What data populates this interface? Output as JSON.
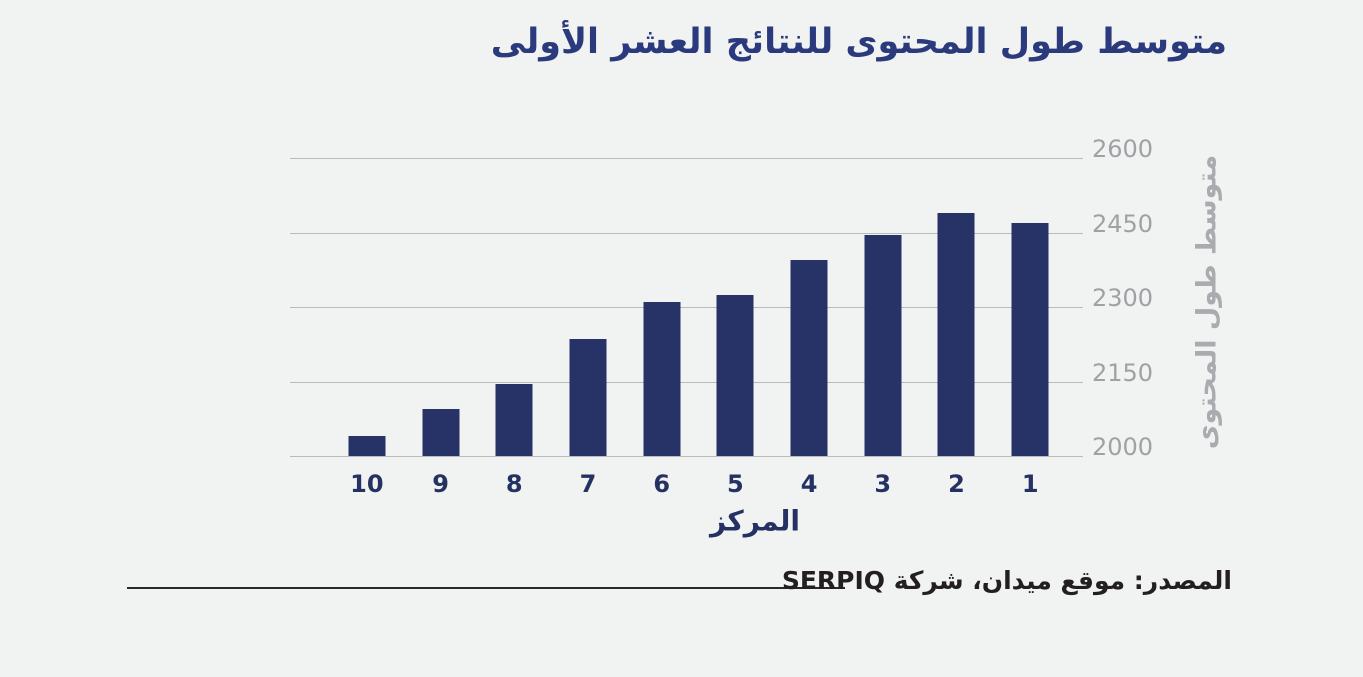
{
  "chart_data": {
    "type": "bar",
    "title": "متوسط طول المحتوى للنتائج العشر الأولى",
    "xlabel": "المركز",
    "ylabel": "متوسط طول المحتوى",
    "direction": "rtl",
    "categories": [
      "10",
      "9",
      "8",
      "7",
      "6",
      "5",
      "4",
      "3",
      "2",
      "1"
    ],
    "values": [
      2040,
      2095,
      2145,
      2235,
      2310,
      2325,
      2395,
      2445,
      2490,
      2470
    ],
    "ylim": [
      2000,
      2600
    ],
    "yticks": [
      2600,
      2450,
      2300,
      2150,
      2000
    ],
    "grid": "horizontal only",
    "legend": "none",
    "bar_color": "#273266"
  },
  "source": {
    "label": "المصدر: موقع ميدان، شركة SERPIQ"
  },
  "colors": {
    "background": "#f1f3f2",
    "bar": "#273266",
    "title_text": "#2b3a7c",
    "x_axis_text": "#243162",
    "y_axis_tick_text": "#9fa1a4",
    "y_axis_title_text": "#a9abae",
    "gridline": "#b9bbba",
    "source_text": "#231f20"
  }
}
